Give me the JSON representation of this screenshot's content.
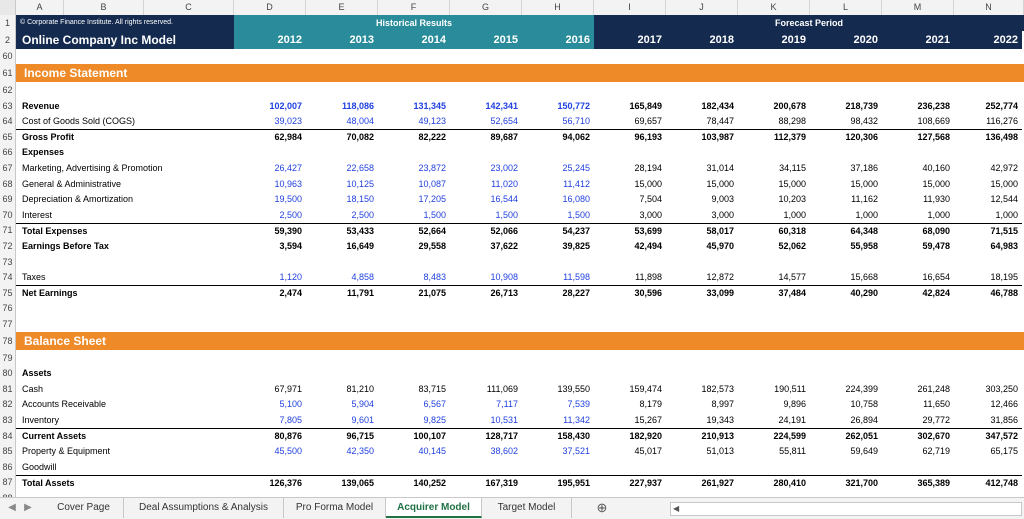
{
  "columns": [
    "A",
    "B",
    "C",
    "D",
    "E",
    "F",
    "G",
    "H",
    "I",
    "J",
    "K",
    "L",
    "M",
    "N"
  ],
  "header": {
    "copyright": "© Corporate Finance Institute. All rights reserved.",
    "model_title": "Online Company Inc Model",
    "historical_label": "Historical Results",
    "forecast_label": "Forecast Period",
    "years": [
      "2012",
      "2013",
      "2014",
      "2015",
      "2016",
      "2017",
      "2018",
      "2019",
      "2020",
      "2021",
      "2022"
    ]
  },
  "rows": [
    {
      "n": "60",
      "type": "blank"
    },
    {
      "n": "61",
      "type": "section",
      "label": "Income Statement"
    },
    {
      "n": "62",
      "type": "blank"
    },
    {
      "n": "63",
      "type": "data",
      "label": "Revenue",
      "bold": true,
      "blue": true,
      "values": [
        "102,007",
        "118,086",
        "131,345",
        "142,341",
        "150,772",
        "165,849",
        "182,434",
        "200,678",
        "218,739",
        "236,238",
        "252,774"
      ]
    },
    {
      "n": "64",
      "type": "data",
      "label": "Cost of Goods Sold (COGS)",
      "blue": true,
      "values": [
        "39,023",
        "48,004",
        "49,123",
        "52,654",
        "56,710",
        "69,657",
        "78,447",
        "88,298",
        "98,432",
        "108,669",
        "116,276"
      ]
    },
    {
      "n": "65",
      "type": "data",
      "label": "Gross Profit",
      "bold": true,
      "border": true,
      "values": [
        "62,984",
        "70,082",
        "82,222",
        "89,687",
        "94,062",
        "96,193",
        "103,987",
        "112,379",
        "120,306",
        "127,568",
        "136,498"
      ]
    },
    {
      "n": "66",
      "type": "data",
      "label": "Expenses",
      "bold": true,
      "values": []
    },
    {
      "n": "67",
      "type": "data",
      "label": "Marketing, Advertising & Promotion",
      "blue": true,
      "values": [
        "26,427",
        "22,658",
        "23,872",
        "23,002",
        "25,245",
        "28,194",
        "31,014",
        "34,115",
        "37,186",
        "40,160",
        "42,972"
      ]
    },
    {
      "n": "68",
      "type": "data",
      "label": "General & Administrative",
      "blue": true,
      "values": [
        "10,963",
        "10,125",
        "10,087",
        "11,020",
        "11,412",
        "15,000",
        "15,000",
        "15,000",
        "15,000",
        "15,000",
        "15,000"
      ]
    },
    {
      "n": "69",
      "type": "data",
      "label": "Depreciation & Amortization",
      "blue": true,
      "values": [
        "19,500",
        "18,150",
        "17,205",
        "16,544",
        "16,080",
        "7,504",
        "9,003",
        "10,203",
        "11,162",
        "11,930",
        "12,544"
      ]
    },
    {
      "n": "70",
      "type": "data",
      "label": "Interest",
      "blue": true,
      "values": [
        "2,500",
        "2,500",
        "1,500",
        "1,500",
        "1,500",
        "3,000",
        "3,000",
        "1,000",
        "1,000",
        "1,000",
        "1,000"
      ]
    },
    {
      "n": "71",
      "type": "data",
      "label": "Total Expenses",
      "bold": true,
      "border": true,
      "values": [
        "59,390",
        "53,433",
        "52,664",
        "52,066",
        "54,237",
        "53,699",
        "58,017",
        "60,318",
        "64,348",
        "68,090",
        "71,515"
      ]
    },
    {
      "n": "72",
      "type": "data",
      "label": "Earnings Before Tax",
      "bold": true,
      "values": [
        "3,594",
        "16,649",
        "29,558",
        "37,622",
        "39,825",
        "42,494",
        "45,970",
        "52,062",
        "55,958",
        "59,478",
        "64,983"
      ]
    },
    {
      "n": "73",
      "type": "blank"
    },
    {
      "n": "74",
      "type": "data",
      "label": "Taxes",
      "blue": true,
      "values": [
        "1,120",
        "4,858",
        "8,483",
        "10,908",
        "11,598",
        "11,898",
        "12,872",
        "14,577",
        "15,668",
        "16,654",
        "18,195"
      ]
    },
    {
      "n": "75",
      "type": "data",
      "label": "Net Earnings",
      "bold": true,
      "border": true,
      "values": [
        "2,474",
        "11,791",
        "21,075",
        "26,713",
        "28,227",
        "30,596",
        "33,099",
        "37,484",
        "40,290",
        "42,824",
        "46,788"
      ]
    },
    {
      "n": "76",
      "type": "blank"
    },
    {
      "n": "77",
      "type": "blank"
    },
    {
      "n": "78",
      "type": "section",
      "label": "Balance Sheet"
    },
    {
      "n": "79",
      "type": "blank"
    },
    {
      "n": "80",
      "type": "data",
      "label": "Assets",
      "bold": true,
      "values": []
    },
    {
      "n": "81",
      "type": "data",
      "label": "Cash",
      "values": [
        "67,971",
        "81,210",
        "83,715",
        "111,069",
        "139,550",
        "159,474",
        "182,573",
        "190,511",
        "224,399",
        "261,248",
        "303,250"
      ]
    },
    {
      "n": "82",
      "type": "data",
      "label": "Accounts Receivable",
      "blue": true,
      "values": [
        "5,100",
        "5,904",
        "6,567",
        "7,117",
        "7,539",
        "8,179",
        "8,997",
        "9,896",
        "10,758",
        "11,650",
        "12,466"
      ]
    },
    {
      "n": "83",
      "type": "data",
      "label": "Inventory",
      "blue": true,
      "values": [
        "7,805",
        "9,601",
        "9,825",
        "10,531",
        "11,342",
        "15,267",
        "19,343",
        "24,191",
        "26,894",
        "29,772",
        "31,856"
      ]
    },
    {
      "n": "84",
      "type": "data",
      "label": "Current Assets",
      "bold": true,
      "border": true,
      "values": [
        "80,876",
        "96,715",
        "100,107",
        "128,717",
        "158,430",
        "182,920",
        "210,913",
        "224,599",
        "262,051",
        "302,670",
        "347,572"
      ]
    },
    {
      "n": "85",
      "type": "data",
      "label": "Property & Equipment",
      "blue": true,
      "values": [
        "45,500",
        "42,350",
        "40,145",
        "38,602",
        "37,521",
        "45,017",
        "51,013",
        "55,811",
        "59,649",
        "62,719",
        "65,175"
      ]
    },
    {
      "n": "86",
      "type": "data",
      "label": "Goodwill",
      "values": []
    },
    {
      "n": "87",
      "type": "data",
      "label": "Total Assets",
      "bold": true,
      "border": true,
      "values": [
        "126,376",
        "139,065",
        "140,252",
        "167,319",
        "195,951",
        "227,937",
        "261,927",
        "280,410",
        "321,700",
        "365,389",
        "412,748"
      ]
    },
    {
      "n": "88",
      "type": "blank"
    }
  ],
  "tabs": [
    "Cover Page",
    "Deal Assumptions & Analysis",
    "Pro Forma Model",
    "Acquirer Model",
    "Target Model"
  ],
  "active_tab": "Acquirer Model",
  "add_sheet_symbol": "⊕",
  "nav_prev": "◀",
  "nav_next": "▶",
  "colors": {
    "navy": "#142a4f",
    "teal": "#2a8c9a",
    "orange": "#ee8a27",
    "input_blue": "#1f3fdf",
    "excel_green": "#1f7244"
  }
}
